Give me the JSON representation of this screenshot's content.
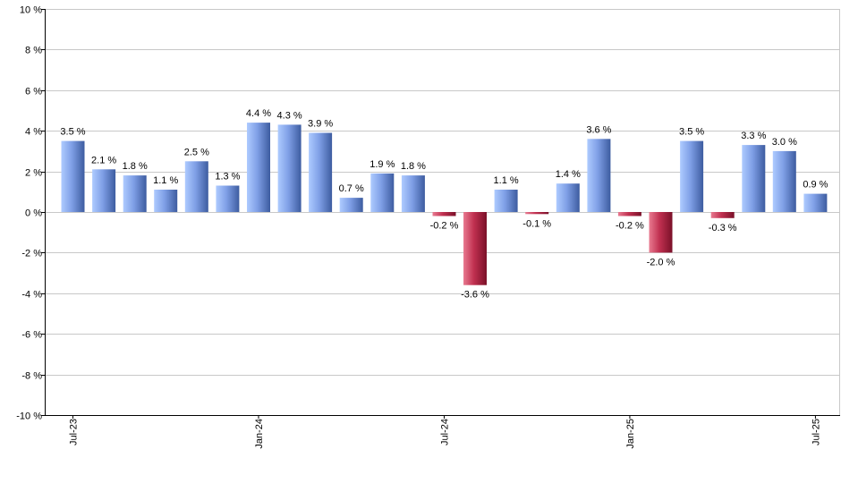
{
  "chart_data": {
    "type": "bar",
    "title": "",
    "xlabel": "",
    "ylabel": "",
    "ylim": [
      -10,
      10
    ],
    "y_ticks": [
      10,
      8,
      6,
      4,
      2,
      0,
      -2,
      -4,
      -6,
      -8,
      -10
    ],
    "y_tick_labels": [
      "10 %",
      "8 %",
      "6 %",
      "4 %",
      "2 %",
      "0 %",
      "-2 %",
      "-4 %",
      "-6 %",
      "-8 %",
      "-10 %"
    ],
    "grid": true,
    "x_tick_labels": [
      {
        "index": 0,
        "label": "Jul-23"
      },
      {
        "index": 6,
        "label": "Jan-24"
      },
      {
        "index": 12,
        "label": "Jul-24"
      },
      {
        "index": 18,
        "label": "Jan-25"
      },
      {
        "index": 24,
        "label": "Jul-25"
      }
    ],
    "values": [
      3.5,
      2.1,
      1.8,
      1.1,
      2.5,
      1.3,
      4.4,
      4.3,
      3.9,
      0.7,
      1.9,
      1.8,
      -0.2,
      -3.6,
      1.1,
      -0.1,
      1.4,
      3.6,
      -0.2,
      -2.0,
      3.5,
      -0.3,
      3.3,
      3.0,
      0.9
    ],
    "data_labels": [
      "3.5 %",
      "2.1 %",
      "1.8 %",
      "1.1 %",
      "2.5 %",
      "1.3 %",
      "4.4 %",
      "4.3 %",
      "3.9 %",
      "0.7 %",
      "1.9 %",
      "1.8 %",
      "-0.2 %",
      "-3.6 %",
      "1.1 %",
      "-0.1 %",
      "1.4 %",
      "3.6 %",
      "-0.2 %",
      "-2.0 %",
      "3.5 %",
      "-0.3 %",
      "3.3 %",
      "3.0 %",
      "0.9 %"
    ],
    "colors": {
      "positive": "#7f9fe6",
      "positive_dark": "#3f5fa6",
      "negative": "#c03050",
      "negative_dark": "#80102a",
      "grid": "#c8c8c8"
    }
  }
}
